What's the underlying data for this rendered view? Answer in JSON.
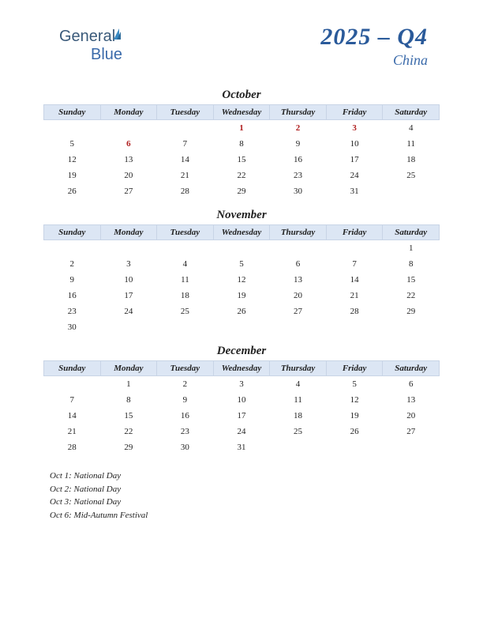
{
  "logo": {
    "part1": "General",
    "part2": "Blue"
  },
  "header": {
    "title": "2025 – Q4",
    "country": "China"
  },
  "day_headers": [
    "Sunday",
    "Monday",
    "Tuesday",
    "Wednesday",
    "Thursday",
    "Friday",
    "Saturday"
  ],
  "colors": {
    "header_row_bg": "#dce6f4",
    "header_row_border": "#c8d4e6",
    "title_color": "#2a5a9a",
    "country_color": "#3a6aaa",
    "holiday_color": "#b02020",
    "text_color": "#222222",
    "background": "#ffffff"
  },
  "months": [
    {
      "name": "October",
      "weeks": [
        [
          {
            "d": ""
          },
          {
            "d": ""
          },
          {
            "d": ""
          },
          {
            "d": "1",
            "h": true
          },
          {
            "d": "2",
            "h": true
          },
          {
            "d": "3",
            "h": true
          },
          {
            "d": "4"
          }
        ],
        [
          {
            "d": "5"
          },
          {
            "d": "6",
            "h": true
          },
          {
            "d": "7"
          },
          {
            "d": "8"
          },
          {
            "d": "9"
          },
          {
            "d": "10"
          },
          {
            "d": "11"
          }
        ],
        [
          {
            "d": "12"
          },
          {
            "d": "13"
          },
          {
            "d": "14"
          },
          {
            "d": "15"
          },
          {
            "d": "16"
          },
          {
            "d": "17"
          },
          {
            "d": "18"
          }
        ],
        [
          {
            "d": "19"
          },
          {
            "d": "20"
          },
          {
            "d": "21"
          },
          {
            "d": "22"
          },
          {
            "d": "23"
          },
          {
            "d": "24"
          },
          {
            "d": "25"
          }
        ],
        [
          {
            "d": "26"
          },
          {
            "d": "27"
          },
          {
            "d": "28"
          },
          {
            "d": "29"
          },
          {
            "d": "30"
          },
          {
            "d": "31"
          },
          {
            "d": ""
          }
        ]
      ]
    },
    {
      "name": "November",
      "weeks": [
        [
          {
            "d": ""
          },
          {
            "d": ""
          },
          {
            "d": ""
          },
          {
            "d": ""
          },
          {
            "d": ""
          },
          {
            "d": ""
          },
          {
            "d": "1"
          }
        ],
        [
          {
            "d": "2"
          },
          {
            "d": "3"
          },
          {
            "d": "4"
          },
          {
            "d": "5"
          },
          {
            "d": "6"
          },
          {
            "d": "7"
          },
          {
            "d": "8"
          }
        ],
        [
          {
            "d": "9"
          },
          {
            "d": "10"
          },
          {
            "d": "11"
          },
          {
            "d": "12"
          },
          {
            "d": "13"
          },
          {
            "d": "14"
          },
          {
            "d": "15"
          }
        ],
        [
          {
            "d": "16"
          },
          {
            "d": "17"
          },
          {
            "d": "18"
          },
          {
            "d": "19"
          },
          {
            "d": "20"
          },
          {
            "d": "21"
          },
          {
            "d": "22"
          }
        ],
        [
          {
            "d": "23"
          },
          {
            "d": "24"
          },
          {
            "d": "25"
          },
          {
            "d": "26"
          },
          {
            "d": "27"
          },
          {
            "d": "28"
          },
          {
            "d": "29"
          }
        ],
        [
          {
            "d": "30"
          },
          {
            "d": ""
          },
          {
            "d": ""
          },
          {
            "d": ""
          },
          {
            "d": ""
          },
          {
            "d": ""
          },
          {
            "d": ""
          }
        ]
      ]
    },
    {
      "name": "December",
      "weeks": [
        [
          {
            "d": ""
          },
          {
            "d": "1"
          },
          {
            "d": "2"
          },
          {
            "d": "3"
          },
          {
            "d": "4"
          },
          {
            "d": "5"
          },
          {
            "d": "6"
          }
        ],
        [
          {
            "d": "7"
          },
          {
            "d": "8"
          },
          {
            "d": "9"
          },
          {
            "d": "10"
          },
          {
            "d": "11"
          },
          {
            "d": "12"
          },
          {
            "d": "13"
          }
        ],
        [
          {
            "d": "14"
          },
          {
            "d": "15"
          },
          {
            "d": "16"
          },
          {
            "d": "17"
          },
          {
            "d": "18"
          },
          {
            "d": "19"
          },
          {
            "d": "20"
          }
        ],
        [
          {
            "d": "21"
          },
          {
            "d": "22"
          },
          {
            "d": "23"
          },
          {
            "d": "24"
          },
          {
            "d": "25"
          },
          {
            "d": "26"
          },
          {
            "d": "27"
          }
        ],
        [
          {
            "d": "28"
          },
          {
            "d": "29"
          },
          {
            "d": "30"
          },
          {
            "d": "31"
          },
          {
            "d": ""
          },
          {
            "d": ""
          },
          {
            "d": ""
          }
        ]
      ]
    }
  ],
  "holidays_list": [
    "Oct 1: National Day",
    "Oct 2: National Day",
    "Oct 3: National Day",
    "Oct 6: Mid-Autumn Festival"
  ]
}
